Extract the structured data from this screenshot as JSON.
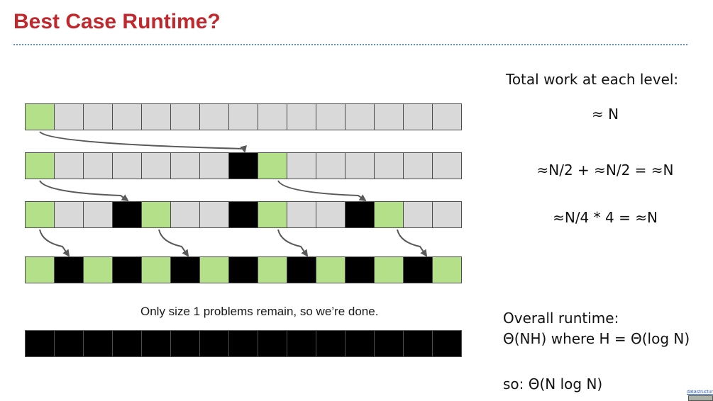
{
  "slide": {
    "title": "Best Case Runtime?",
    "caption": "Only size 1 problems remain, so we’re done.",
    "work_heading": "Total work at each level:",
    "level_work": [
      "≈ N",
      "≈N/2 + ≈N/2 = ≈N",
      "≈N/4 * 4 = ≈N"
    ],
    "overall_label": "Overall runtime:",
    "overall_formula": "Θ(NH) where H = Θ(log N)",
    "conclusion": "so: Θ(N log N)",
    "corner_link": "datastructur"
  },
  "array_rows": [
    [
      "green",
      "gray",
      "gray",
      "gray",
      "gray",
      "gray",
      "gray",
      "gray",
      "gray",
      "gray",
      "gray",
      "gray",
      "gray",
      "gray",
      "gray"
    ],
    [
      "green",
      "gray",
      "gray",
      "gray",
      "gray",
      "gray",
      "gray",
      "black",
      "green",
      "gray",
      "gray",
      "gray",
      "gray",
      "gray",
      "gray"
    ],
    [
      "green",
      "gray",
      "gray",
      "black",
      "green",
      "gray",
      "gray",
      "black",
      "green",
      "gray",
      "gray",
      "black",
      "green",
      "gray",
      "gray"
    ],
    [
      "green",
      "black",
      "green",
      "black",
      "green",
      "black",
      "green",
      "black",
      "green",
      "black",
      "green",
      "black",
      "green",
      "black",
      "green"
    ],
    [
      "black",
      "black",
      "black",
      "black",
      "black",
      "black",
      "black",
      "black",
      "black",
      "black",
      "black",
      "black",
      "black",
      "black",
      "black"
    ]
  ],
  "colors": {
    "title": "#c0282d",
    "green": "#b4e08a",
    "gray": "#d9d9d9",
    "black": "#000000",
    "arrow": "#595959"
  }
}
